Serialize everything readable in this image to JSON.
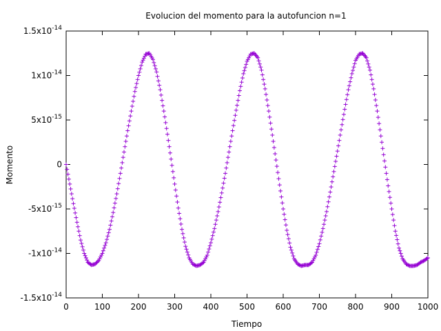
{
  "chart_data": {
    "type": "scatter",
    "title": "Evolucion del momento para la autofuncion n=1",
    "xlabel": "Tiempo",
    "ylabel": "Momento",
    "xlim": [
      0,
      1000
    ],
    "ylim": [
      -1.5e-14,
      1.5e-14
    ],
    "grid": false,
    "legend": "none",
    "marker": "+",
    "color": "#9400d3",
    "x_ticks": [
      {
        "value": 0,
        "label": "0"
      },
      {
        "value": 100,
        "label": "100"
      },
      {
        "value": 200,
        "label": "200"
      },
      {
        "value": 300,
        "label": "300"
      },
      {
        "value": 400,
        "label": "400"
      },
      {
        "value": 500,
        "label": "500"
      },
      {
        "value": 600,
        "label": "600"
      },
      {
        "value": 700,
        "label": "700"
      },
      {
        "value": 800,
        "label": "800"
      },
      {
        "value": 900,
        "label": "900"
      },
      {
        "value": 1000,
        "label": "1000"
      }
    ],
    "y_ticks": [
      {
        "value": 1.5e-14,
        "mant": "1.5x10",
        "exp": "-14"
      },
      {
        "value": 1e-14,
        "mant": "1x10",
        "exp": "-14"
      },
      {
        "value": 5e-15,
        "mant": "5x10",
        "exp": "-15"
      },
      {
        "value": 0,
        "mant": "0",
        "exp": ""
      },
      {
        "value": -5e-15,
        "mant": "-5x10",
        "exp": "-15"
      },
      {
        "value": -1e-14,
        "mant": "-1x10",
        "exp": "-14"
      },
      {
        "value": -1.5e-14,
        "mant": "-1.5x10",
        "exp": "-14"
      }
    ],
    "series": [
      {
        "x": [
          0,
          10,
          20,
          30,
          40,
          50,
          60,
          70,
          80,
          90,
          100,
          110,
          120,
          130,
          140,
          150,
          160,
          170,
          180,
          190,
          200,
          210,
          220,
          230,
          240,
          250,
          260,
          270,
          280,
          290,
          300,
          310,
          320,
          330,
          340,
          350,
          360,
          370,
          380,
          390,
          400,
          410,
          420,
          430,
          440,
          450,
          460,
          470,
          480,
          490,
          500,
          510,
          520,
          530,
          540,
          550,
          560,
          570,
          580,
          590,
          600,
          610,
          620,
          630,
          640,
          650,
          660,
          670,
          680,
          690,
          700,
          710,
          720,
          730,
          740,
          750,
          760,
          770,
          780,
          790,
          800,
          810,
          820,
          830,
          840,
          850,
          860,
          870,
          880,
          890,
          900,
          910,
          920,
          930,
          940,
          950,
          960,
          970,
          980,
          990,
          1000
        ],
        "y": [
          0,
          -2.2e-15,
          -4.4e-15,
          -6.5e-15,
          -8.5e-15,
          -1e-14,
          -1.1e-14,
          -1.13e-14,
          -1.12e-14,
          -1.08e-14,
          -1e-14,
          -8.8e-15,
          -7.3e-15,
          -5.4e-15,
          -3.3e-15,
          -1e-15,
          1.4e-15,
          3.8e-15,
          6e-15,
          8.2e-15,
          1e-14,
          1.15e-14,
          1.24e-14,
          1.25e-14,
          1.18e-14,
          1.04e-14,
          8.4e-15,
          6e-15,
          3.4e-15,
          6e-16,
          -2.2e-15,
          -4.9e-15,
          -7.3e-15,
          -9.2e-15,
          -1.05e-14,
          -1.12e-14,
          -1.14e-14,
          -1.13e-14,
          -1.1e-14,
          -1.02e-14,
          -8.8e-15,
          -7.2e-15,
          -5.3e-15,
          -3.2e-15,
          -1e-15,
          1.4e-15,
          3.8e-15,
          6.1e-15,
          8.3e-15,
          1.02e-14,
          1.16e-14,
          1.24e-14,
          1.25e-14,
          1.2e-14,
          1.06e-14,
          8.5e-15,
          6e-15,
          3.3e-15,
          5e-16,
          -2.3e-15,
          -5e-15,
          -7.4e-15,
          -9.3e-15,
          -1.06e-14,
          -1.12e-14,
          -1.14e-14,
          -1.13e-14,
          -1.13e-14,
          -1.1e-14,
          -1.02e-14,
          -8.9e-15,
          -7.2e-15,
          -5.3e-15,
          -3.1e-15,
          -8e-16,
          1.5e-15,
          3.9e-15,
          6.2e-15,
          8.4e-15,
          1.02e-14,
          1.17e-14,
          1.24e-14,
          1.25e-14,
          1.2e-14,
          1.06e-14,
          8.5e-15,
          6e-15,
          3.2e-15,
          4e-16,
          -2.4e-15,
          -5e-15,
          -7.5e-15,
          -9.4e-15,
          -1.06e-14,
          -1.12e-14,
          -1.14e-14,
          -1.14e-14,
          -1.13e-14,
          -1.1e-14,
          -1.08e-14,
          -1.05e-14
        ]
      }
    ]
  }
}
